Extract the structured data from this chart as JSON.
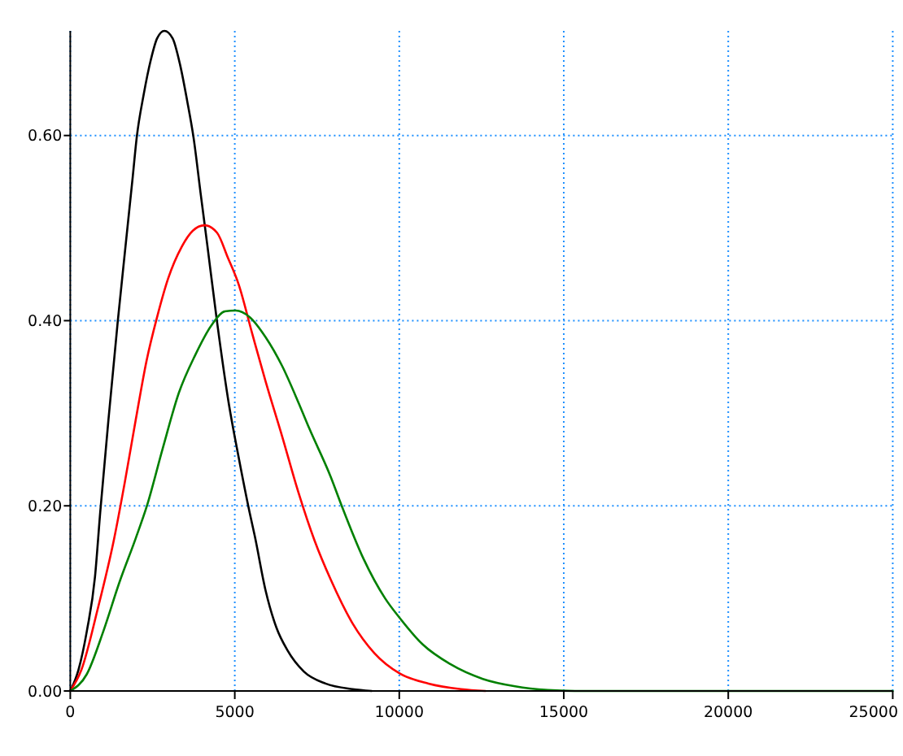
{
  "chart_data": {
    "type": "line",
    "xlim": [
      0,
      25000
    ],
    "xticks": [
      0,
      5000,
      10000,
      15000,
      20000,
      25000
    ],
    "ylim": [
      0,
      0.713
    ],
    "yticks": [
      {
        "value": 0,
        "label": "0.00"
      },
      {
        "value": 0.2,
        "label": "0.20"
      },
      {
        "value": 0.4,
        "label": "0.40"
      },
      {
        "value": 0.6,
        "label": "0.60"
      }
    ],
    "grid": true,
    "series": [
      {
        "color": "#000000",
        "x": [
          0,
          250,
          500,
          750,
          910,
          1160,
          1440,
          1660,
          1900,
          2020,
          2230,
          2450,
          2640,
          2860,
          3110,
          3340,
          3550,
          3750,
          3960,
          4160,
          4460,
          4820,
          5120,
          5450,
          5610,
          5940,
          6270,
          6600,
          7100,
          7760,
          8580,
          9160
        ],
        "values": [
          0,
          0.023,
          0.064,
          0.123,
          0.193,
          0.293,
          0.398,
          0.474,
          0.556,
          0.598,
          0.644,
          0.682,
          0.705,
          0.713,
          0.705,
          0.676,
          0.638,
          0.597,
          0.538,
          0.483,
          0.399,
          0.31,
          0.252,
          0.193,
          0.167,
          0.108,
          0.068,
          0.044,
          0.021,
          0.008,
          0.002,
          0
        ]
      },
      {
        "color": "#ff0000",
        "x": [
          0,
          340,
          830,
          1330,
          1660,
          1990,
          2320,
          2640,
          2970,
          3390,
          3720,
          4080,
          4460,
          4790,
          5120,
          5530,
          5940,
          6440,
          6930,
          7430,
          7920,
          8580,
          9240,
          10010,
          10890,
          11880,
          12620
        ],
        "values": [
          0,
          0.023,
          0.088,
          0.164,
          0.226,
          0.293,
          0.357,
          0.404,
          0.445,
          0.48,
          0.497,
          0.503,
          0.495,
          0.468,
          0.439,
          0.386,
          0.334,
          0.275,
          0.215,
          0.162,
          0.12,
          0.073,
          0.041,
          0.019,
          0.008,
          0.002,
          0
        ]
      },
      {
        "color": "#008000",
        "x": [
          0,
          500,
          1000,
          1490,
          1990,
          2330,
          2810,
          3300,
          3800,
          4290,
          4700,
          5030,
          5450,
          5940,
          6440,
          6930,
          7260,
          7920,
          8250,
          8910,
          9570,
          10010,
          10720,
          11550,
          12540,
          13520,
          14510,
          15340,
          25000
        ],
        "values": [
          0,
          0.018,
          0.064,
          0.117,
          0.165,
          0.2,
          0.262,
          0.322,
          0.363,
          0.395,
          0.41,
          0.411,
          0.404,
          0.382,
          0.351,
          0.312,
          0.284,
          0.231,
          0.2,
          0.143,
          0.1,
          0.079,
          0.05,
          0.029,
          0.013,
          0.005,
          0.001,
          0,
          0
        ]
      }
    ]
  }
}
